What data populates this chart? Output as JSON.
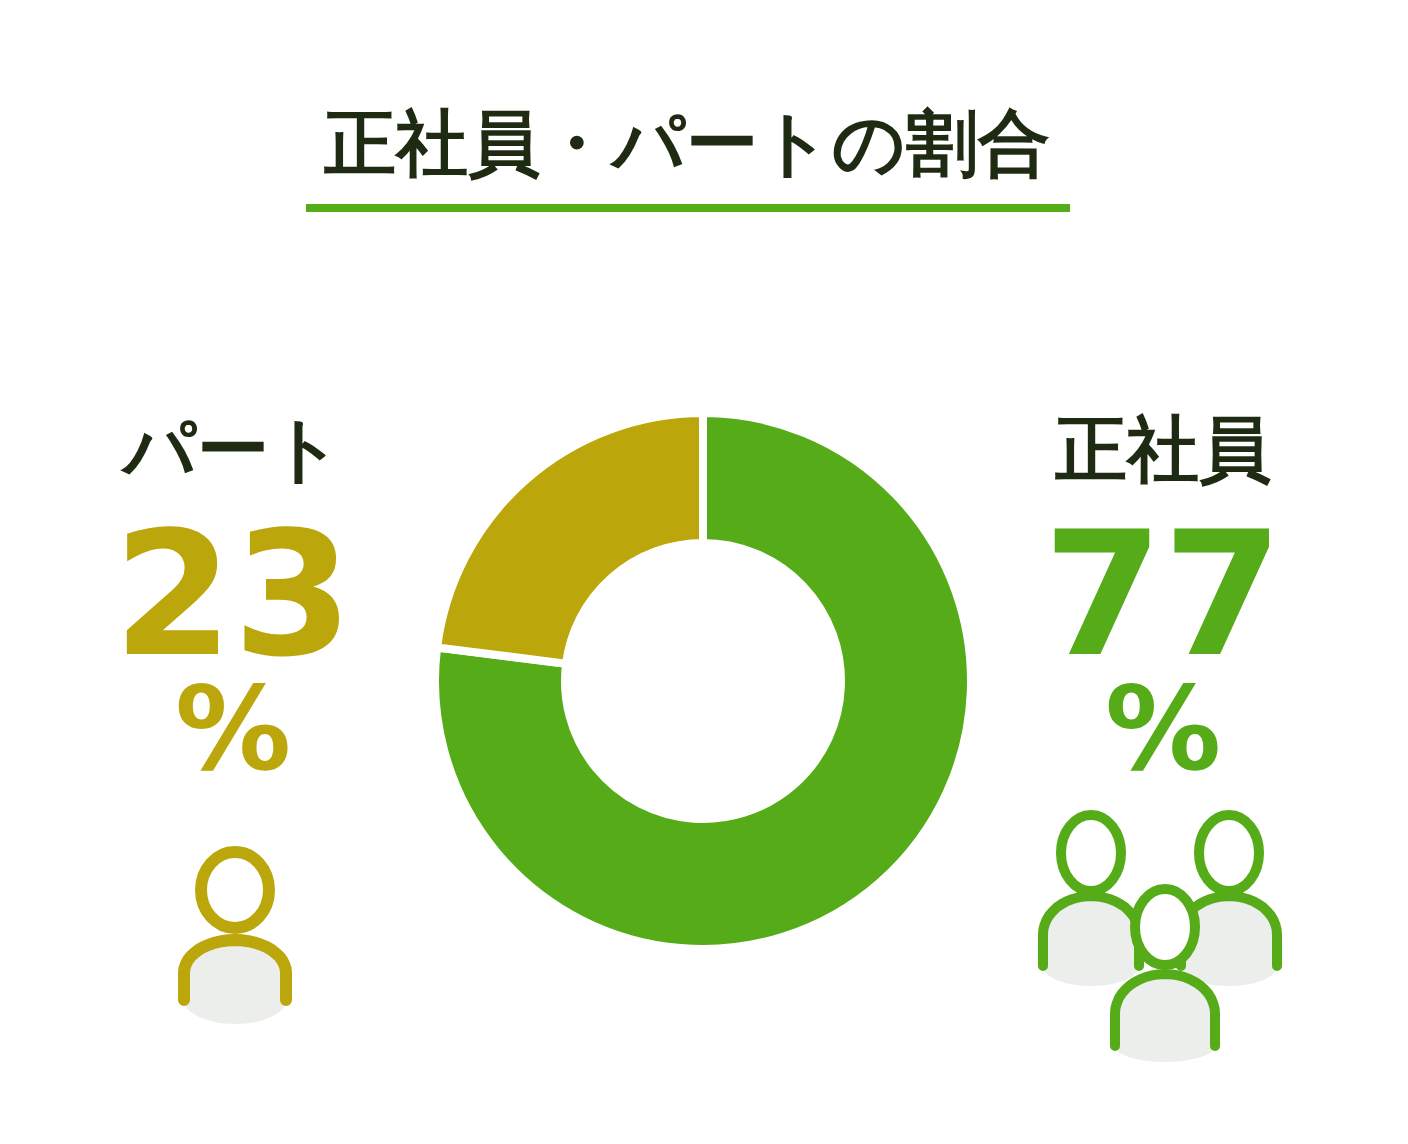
{
  "chart_data": {
    "type": "donut",
    "title": "正社員・パートの割合",
    "categories": [
      "正社員",
      "パート"
    ],
    "values": [
      77,
      23
    ],
    "colors": [
      "#55ac18",
      "#bba70b"
    ],
    "value_labels": [
      "77\n%",
      "23\n%"
    ]
  }
}
